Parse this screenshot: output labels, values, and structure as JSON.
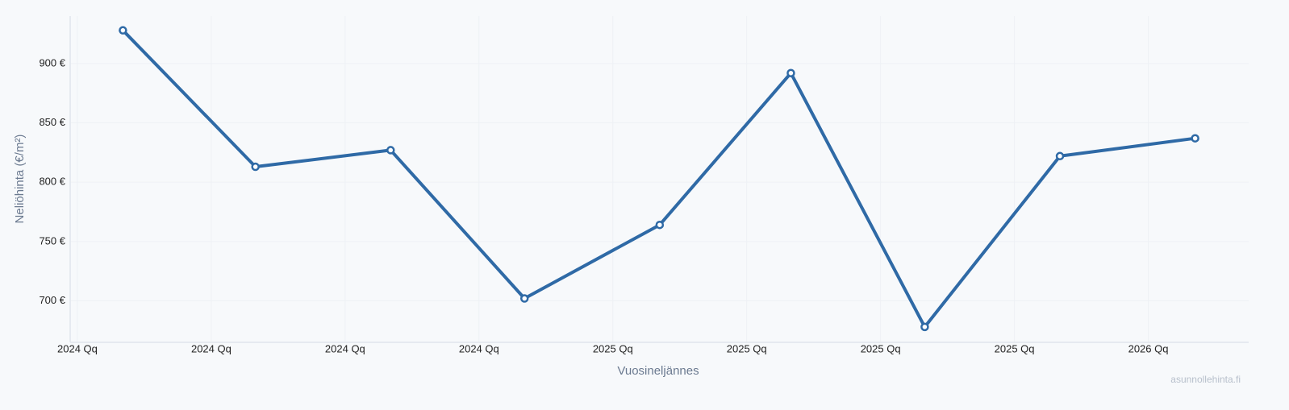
{
  "chart_data": {
    "type": "line",
    "x": [
      0.34,
      1.33,
      2.34,
      3.34,
      4.35,
      5.33,
      6.33,
      7.34,
      8.35
    ],
    "values": [
      928,
      813,
      827,
      702,
      764,
      892,
      678,
      822,
      837
    ],
    "color": "#2f6aa6",
    "xlim": [
      -0.054,
      8.75
    ],
    "xticks": [
      {
        "value": 0,
        "label": "2024 Qq"
      },
      {
        "value": 1,
        "label": "2024 Qq"
      },
      {
        "value": 2,
        "label": "2024 Qq"
      },
      {
        "value": 3,
        "label": "2024 Qq"
      },
      {
        "value": 4,
        "label": "2025 Qq"
      },
      {
        "value": 5,
        "label": "2025 Qq"
      },
      {
        "value": 6,
        "label": "2025 Qq"
      },
      {
        "value": 7,
        "label": "2025 Qq"
      },
      {
        "value": 8,
        "label": "2026 Qq"
      }
    ],
    "ylim": [
      665,
      940
    ],
    "yticks": [
      {
        "value": 700,
        "label": "700 €"
      },
      {
        "value": 750,
        "label": "750 €"
      },
      {
        "value": 800,
        "label": "800 €"
      },
      {
        "value": 850,
        "label": "850 €"
      },
      {
        "value": 900,
        "label": "900 €"
      }
    ],
    "grid": true,
    "x_label": "Vuosineljännes",
    "y_label": "Neliöhinta (€/m²)",
    "watermark": "asunnollehinta.fi"
  }
}
